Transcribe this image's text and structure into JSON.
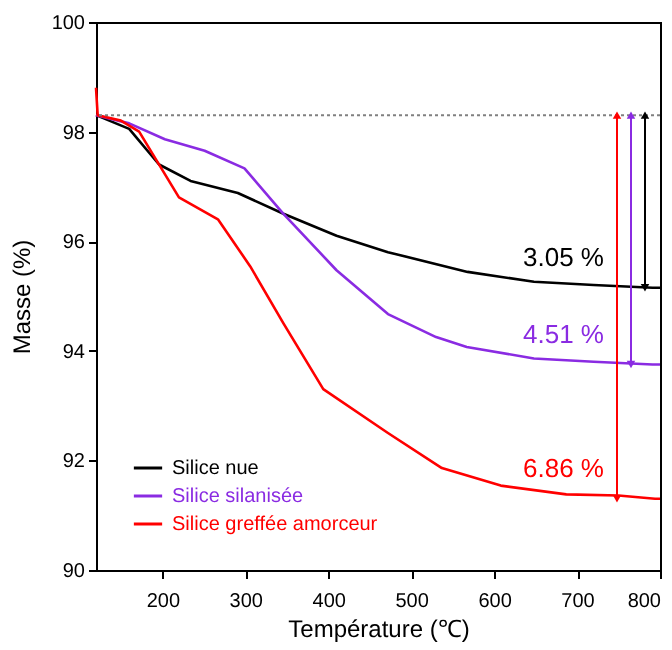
{
  "chart_data": {
    "type": "line",
    "xlabel": "Température (℃)",
    "ylabel": "Masse (%)",
    "xlim": [
      120,
      800
    ],
    "ylim": [
      90,
      100
    ],
    "xticks": [
      200,
      300,
      400,
      500,
      600,
      700,
      800
    ],
    "yticks": [
      90,
      92,
      94,
      96,
      98,
      100
    ],
    "grid": false,
    "legend": "bottom left",
    "line_style": "solid",
    "marker": "none",
    "series": [
      {
        "name": "Silice nue",
        "color": "#000000",
        "x": [
          120,
          160,
          196,
          234,
          291,
          346,
          410,
          472,
          568,
          648,
          720,
          791,
          800
        ],
        "values": [
          98.3,
          98.05,
          97.4,
          97.1,
          96.88,
          96.5,
          96.1,
          95.8,
          95.44,
          95.26,
          95.2,
          95.15,
          95.15
        ]
      },
      {
        "name": "Silice silanisée",
        "color": "#8a2be2",
        "x": [
          120,
          160,
          203,
          251,
          299,
          346,
          410,
          472,
          530,
          567,
          648,
          720,
          791,
          800
        ],
        "values": [
          98.3,
          98.15,
          97.86,
          97.65,
          97.33,
          96.5,
          95.47,
          94.67,
          94.25,
          94.07,
          93.86,
          93.8,
          93.75,
          93.75
        ]
      },
      {
        "name": "Silice greffée amorceur",
        "color": "#ff0000",
        "x": [
          120,
          122,
          150,
          172,
          220,
          267,
          306,
          346,
          394,
          472,
          537,
          608,
          687,
          750,
          794,
          800
        ],
        "values": [
          98.8,
          98.3,
          98.2,
          98.0,
          96.8,
          96.4,
          95.54,
          94.5,
          93.3,
          92.5,
          91.86,
          91.54,
          91.38,
          91.36,
          91.3,
          91.3
        ]
      }
    ],
    "ref_lines": [
      {
        "axis": "y",
        "value": 98.3,
        "color": "#808080",
        "line_style": "dotted"
      }
    ],
    "annotations": [
      "3.05 %",
      "4.51 %",
      "6.86 %"
    ]
  }
}
